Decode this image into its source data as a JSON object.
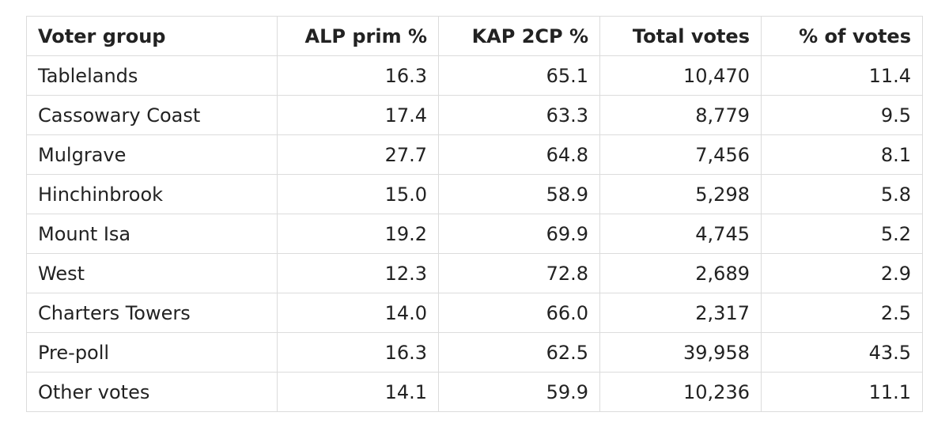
{
  "table": {
    "headers": [
      "Voter group",
      "ALP prim %",
      "KAP 2CP %",
      "Total votes",
      "% of votes"
    ],
    "rows": [
      [
        "Tablelands",
        "16.3",
        "65.1",
        "10,470",
        "11.4"
      ],
      [
        "Cassowary Coast",
        "17.4",
        "63.3",
        "8,779",
        "9.5"
      ],
      [
        "Mulgrave",
        "27.7",
        "64.8",
        "7,456",
        "8.1"
      ],
      [
        "Hinchinbrook",
        "15.0",
        "58.9",
        "5,298",
        "5.8"
      ],
      [
        "Mount Isa",
        "19.2",
        "69.9",
        "4,745",
        "5.2"
      ],
      [
        "West",
        "12.3",
        "72.8",
        "2,689",
        "2.9"
      ],
      [
        "Charters Towers",
        "14.0",
        "66.0",
        "2,317",
        "2.5"
      ],
      [
        "Pre-poll",
        "16.3",
        "62.5",
        "39,958",
        "43.5"
      ],
      [
        "Other votes",
        "14.1",
        "59.9",
        "10,236",
        "11.1"
      ]
    ]
  }
}
